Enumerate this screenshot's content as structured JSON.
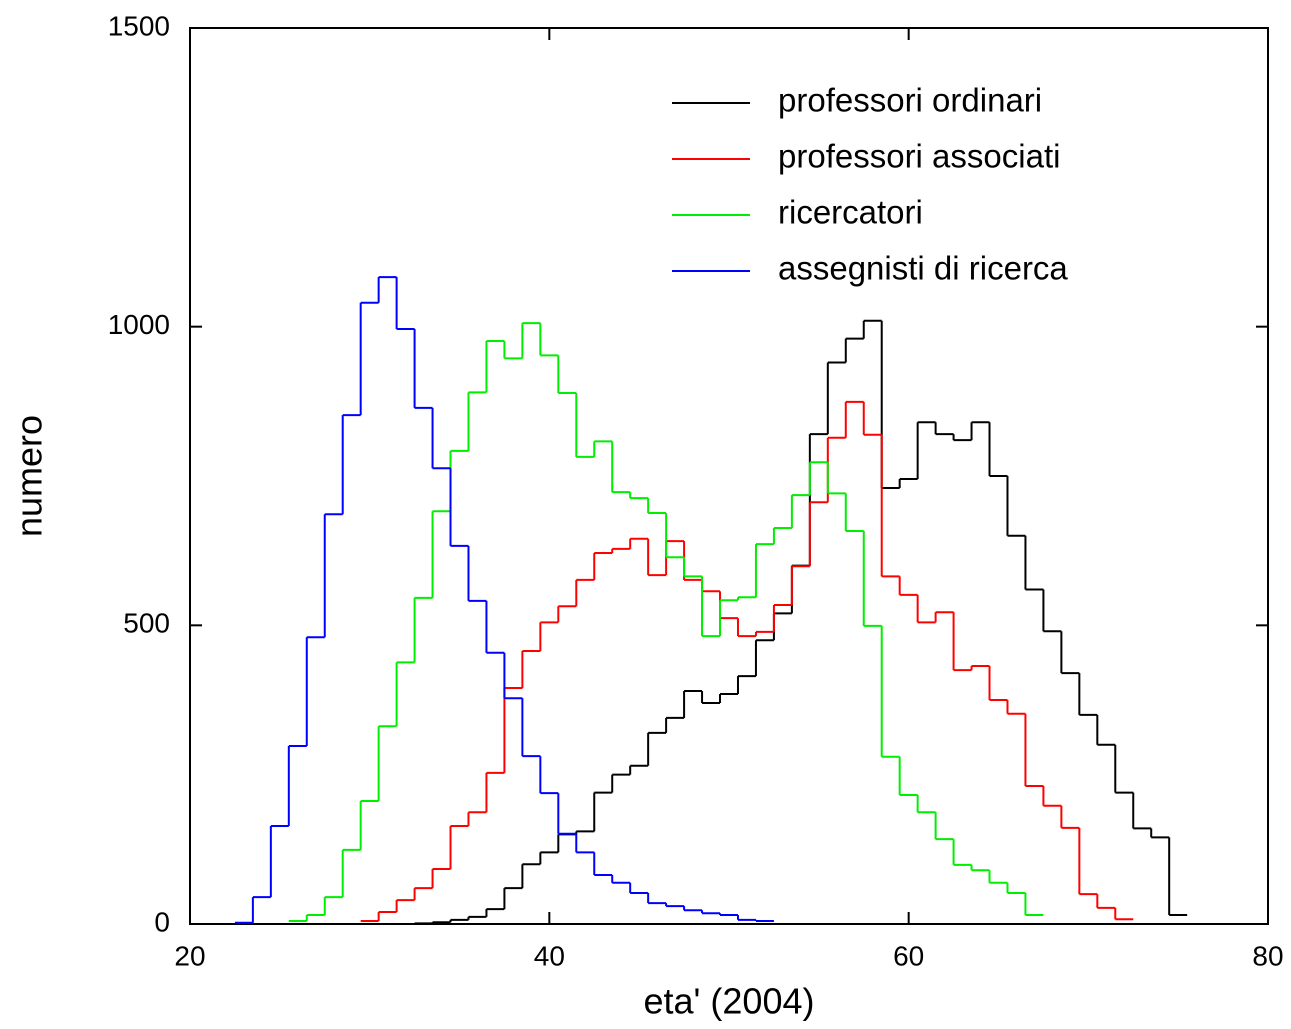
{
  "chart_data": {
    "type": "histogram",
    "xlabel": "eta' (2004)",
    "ylabel": "numero",
    "bins": [
      22.5,
      23.5,
      24.5,
      25.5,
      26.5,
      27.5,
      28.5,
      29.5,
      30.5,
      31.5,
      32.5,
      33.5,
      34.5,
      35.5,
      36.5,
      37.5,
      38.5,
      39.5,
      40.5,
      41.5,
      42.5,
      43.5,
      44.5,
      45.5,
      46.5,
      47.5,
      48.5,
      49.5,
      50.5,
      51.5,
      52.5,
      53.5,
      54.5,
      55.5,
      56.5,
      57.5,
      58.5,
      59.5,
      60.5,
      61.5,
      62.5,
      63.5,
      64.5,
      65.5,
      66.5,
      67.5,
      68.5,
      69.5,
      70.5,
      71.5,
      72.5,
      73.5,
      74.5,
      75.5
    ],
    "series": [
      {
        "name": "professori ordinari",
        "color": "#000000",
        "values": [
          null,
          null,
          null,
          null,
          null,
          null,
          null,
          null,
          null,
          null,
          1,
          3,
          7,
          12,
          25,
          60,
          100,
          120,
          150,
          155,
          220,
          250,
          265,
          320,
          345,
          390,
          370,
          385,
          415,
          475,
          520,
          600,
          820,
          940,
          980,
          1010,
          730,
          745,
          840,
          820,
          810,
          840,
          750,
          650,
          560,
          490,
          420,
          350,
          300,
          220,
          160,
          145,
          15
        ]
      },
      {
        "name": "professori associati",
        "color": "#ff0000",
        "values": [
          null,
          null,
          null,
          null,
          null,
          null,
          null,
          5,
          20,
          40,
          60,
          92,
          164,
          187,
          253,
          395,
          457,
          505,
          532,
          576,
          621,
          628,
          645,
          584,
          641,
          576,
          557,
          512,
          482,
          489,
          534,
          599,
          706,
          814,
          874,
          819,
          582,
          551,
          505,
          522,
          425,
          432,
          375,
          352,
          231,
          198,
          161,
          50,
          27,
          8,
          null,
          null,
          null
        ]
      },
      {
        "name": "ricercatori",
        "color": "#00ee00",
        "values": [
          null,
          null,
          null,
          5,
          15,
          45,
          124,
          206,
          331,
          438,
          546,
          691,
          792,
          890,
          976,
          947,
          1006,
          952,
          889,
          782,
          808,
          723,
          713,
          688,
          614,
          582,
          482,
          542,
          547,
          636,
          663,
          718,
          773,
          721,
          658,
          499,
          280,
          216,
          187,
          142,
          99,
          90,
          69,
          52,
          15,
          null,
          null,
          null,
          null,
          null,
          null,
          null,
          null
        ]
      },
      {
        "name": "assegnisti di ricerca",
        "color": "#0000ff",
        "values": [
          2,
          45,
          164,
          298,
          480,
          686,
          852,
          1040,
          1083,
          996,
          864,
          763,
          633,
          541,
          454,
          378,
          281,
          219,
          151,
          120,
          82,
          69,
          52,
          35,
          30,
          23,
          18,
          15,
          7,
          5,
          null,
          null,
          null,
          null,
          null,
          null,
          null,
          null,
          null,
          null,
          null,
          null,
          null,
          null,
          null,
          null,
          null,
          null,
          null,
          null,
          null,
          null,
          null
        ]
      }
    ],
    "xlim": [
      20,
      80
    ],
    "xticks": [
      20,
      40,
      60,
      80
    ],
    "ylim": [
      0,
      1500
    ],
    "yticks": [
      0,
      500,
      1000,
      1500
    ],
    "legend": "upper-right"
  }
}
